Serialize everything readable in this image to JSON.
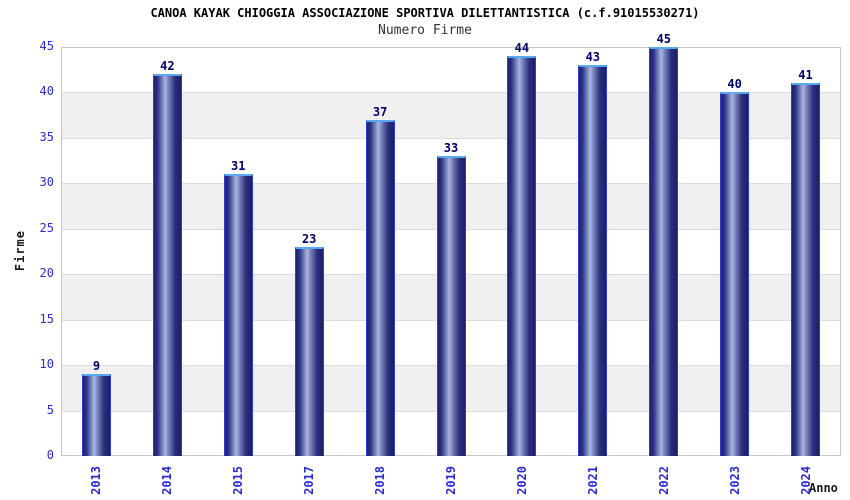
{
  "chart_data": {
    "type": "bar",
    "title": "CANOA KAYAK CHIOGGIA ASSOCIAZIONE SPORTIVA DILETTANTISTICA (c.f.91015530271)",
    "subtitle": "Numero Firme",
    "xlabel": "Anno",
    "ylabel": "Firme",
    "categories": [
      "2013",
      "2014",
      "2015",
      "2017",
      "2018",
      "2019",
      "2020",
      "2021",
      "2022",
      "2023",
      "2024"
    ],
    "values": [
      9,
      42,
      31,
      23,
      37,
      33,
      44,
      43,
      45,
      40,
      41
    ],
    "ylim": [
      0,
      45
    ],
    "yticks": [
      0,
      5,
      10,
      15,
      20,
      25,
      30,
      35,
      40,
      45
    ],
    "grid": true,
    "legend_position": "none",
    "plot_background": "alternating horizontal bands"
  },
  "colors": {
    "background": "#ffffff",
    "plot_border": "#c8c8c8",
    "gridline": "#dcdcdc",
    "band_main": "#ffffff",
    "band_alt": "#f0f0f0",
    "tick_label": "#2b2bd5",
    "value_label": "#00006b",
    "title": "#000000",
    "subtitle": "#333333",
    "axis_title": "#1a1a1a",
    "bar_border": "#2e40d4",
    "bar_top_highlight": "#5aa7f2",
    "bar_gradient": [
      "#1f1f6e",
      "#2c3384",
      "#8494c6",
      "#aab6de",
      "#707cb5",
      "#2c2f7c",
      "#1c1d66"
    ]
  }
}
